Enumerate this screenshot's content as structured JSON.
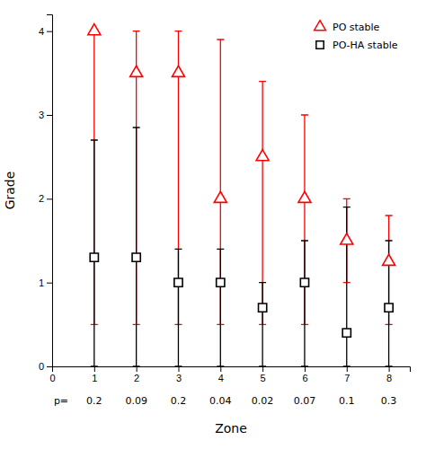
{
  "chart_data": {
    "type": "scatter",
    "x": [
      1,
      2,
      3,
      4,
      5,
      6,
      7,
      8
    ],
    "series": [
      {
        "name": "PO stable",
        "color": "#ff0000",
        "marker": "triangle",
        "values": [
          4.0,
          3.5,
          3.5,
          2.0,
          2.5,
          2.0,
          1.5,
          1.25
        ],
        "lower": [
          0.5,
          0.5,
          0.5,
          0.5,
          0.5,
          0.5,
          1.0,
          0.5
        ],
        "upper": [
          4.0,
          4.0,
          4.0,
          3.9,
          3.4,
          3.0,
          2.0,
          1.8
        ]
      },
      {
        "name": "PO-HA stable",
        "color": "#000000",
        "marker": "square",
        "values": [
          1.3,
          1.3,
          1.0,
          1.0,
          0.7,
          1.0,
          0.4,
          0.7
        ],
        "lower": [
          0.0,
          0.0,
          0.0,
          0.0,
          0.0,
          0.0,
          0.0,
          0.0
        ],
        "upper": [
          2.7,
          2.85,
          1.4,
          1.4,
          1.0,
          1.5,
          1.9,
          1.5
        ]
      }
    ],
    "p_label": "p=",
    "p_values": [
      "0.2",
      "0.09",
      "0.2",
      "0.04",
      "0.02",
      "0.07",
      "0.1",
      "0.3"
    ],
    "xlabel": "Zone",
    "ylabel": "Grade",
    "xlim": [
      0,
      8.5
    ],
    "ylim": [
      0,
      4.2
    ],
    "xticks": [
      0,
      1,
      2,
      3,
      4,
      5,
      6,
      7,
      8
    ],
    "yticks": [
      0,
      1,
      2,
      3,
      4
    ],
    "legend": "upper right"
  }
}
